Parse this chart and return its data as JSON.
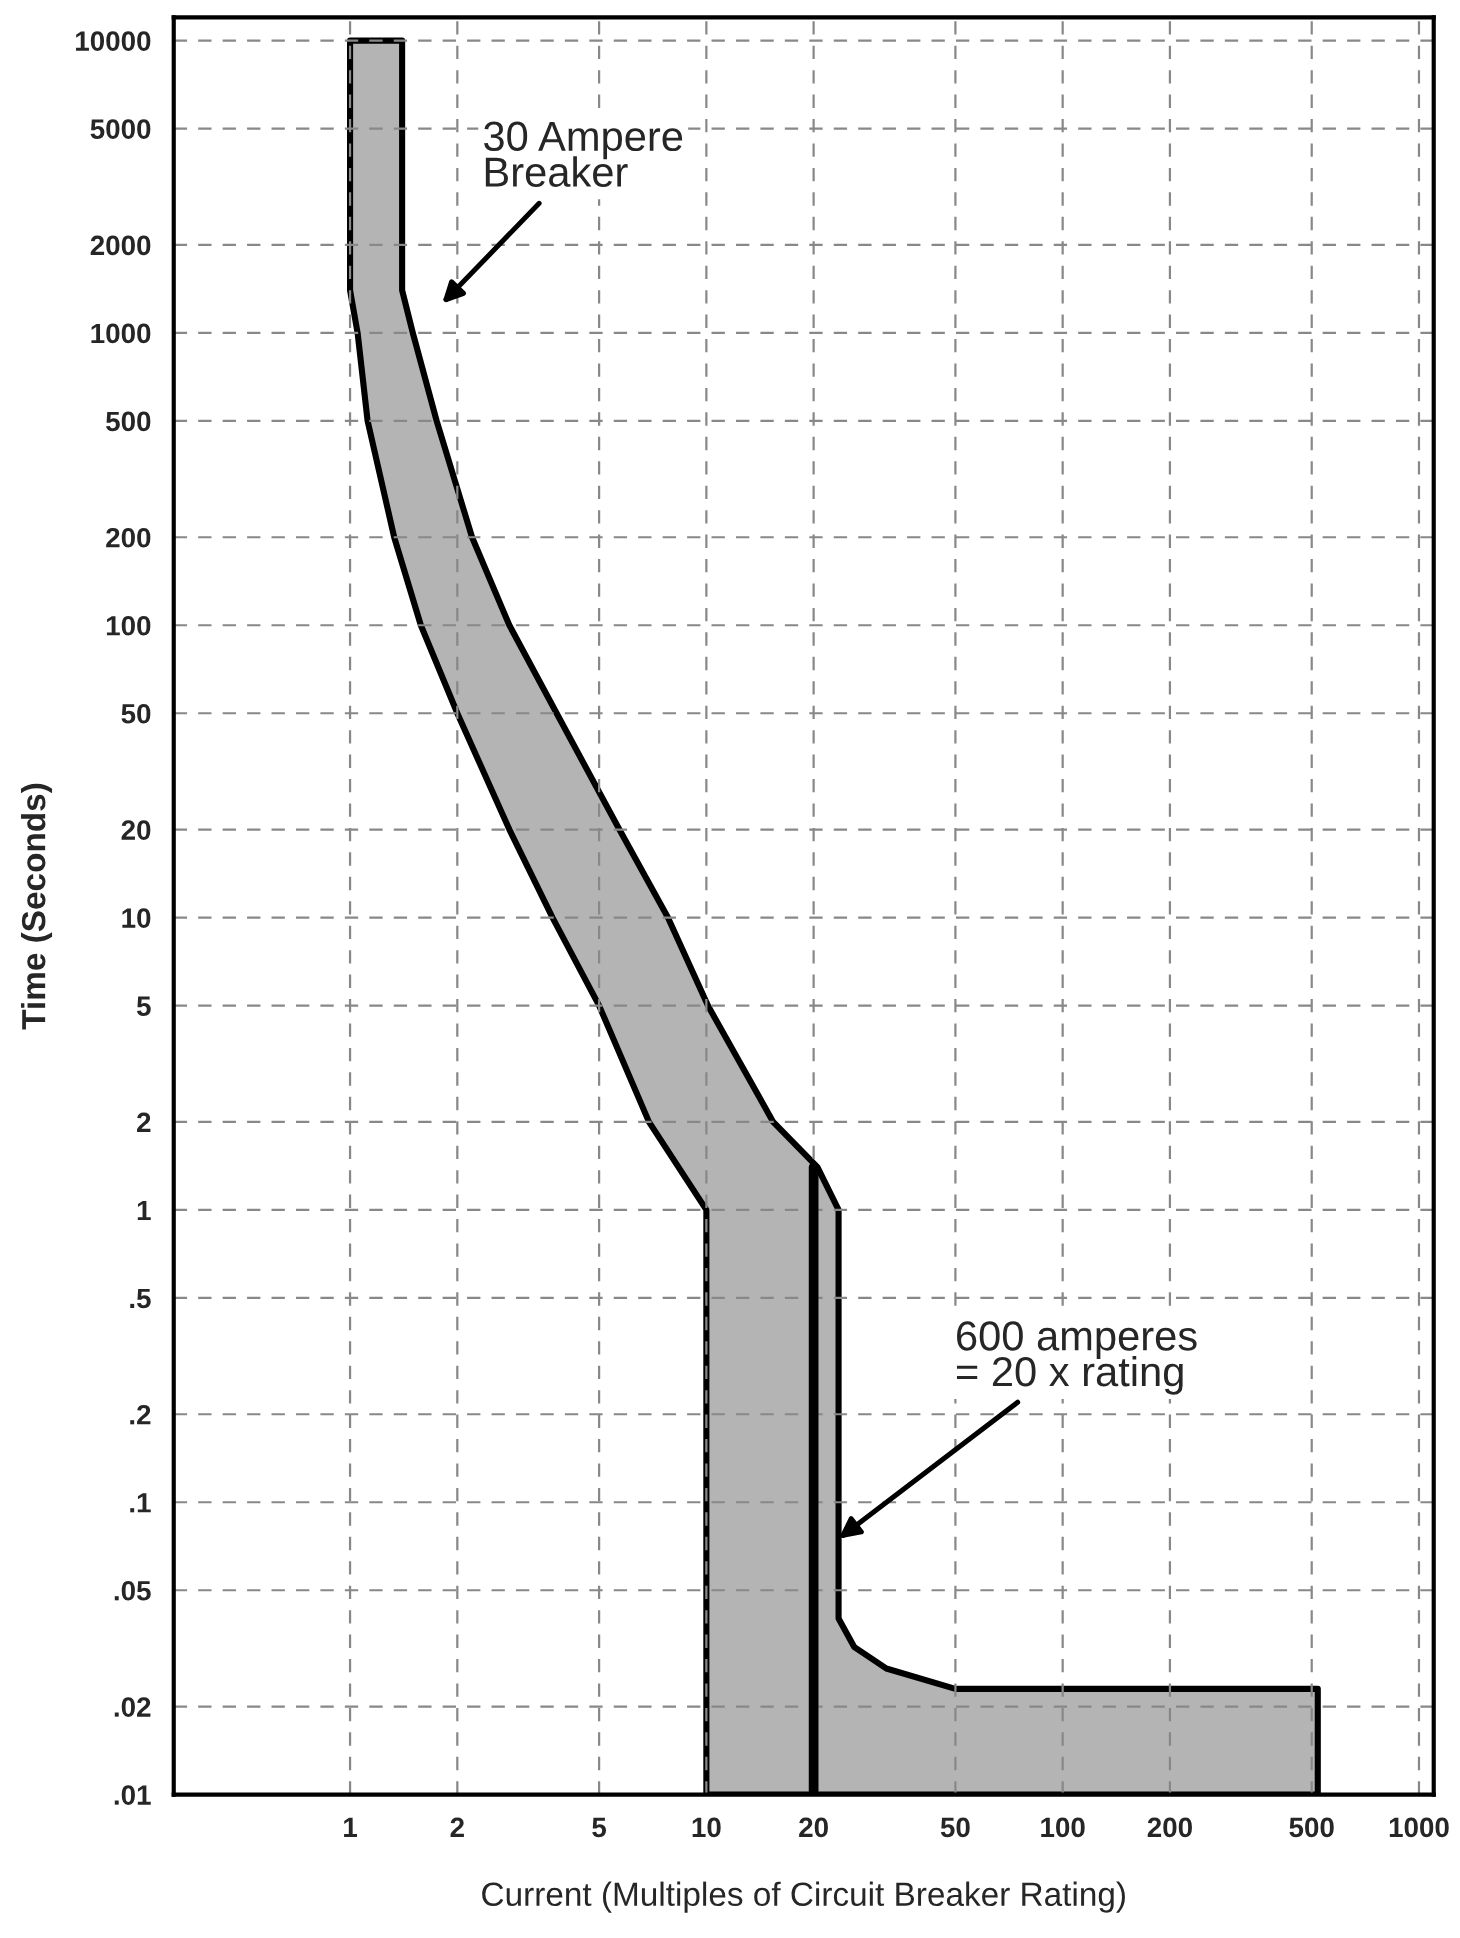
{
  "chart_data": {
    "type": "area",
    "xlabel": "Current (Multiples of Circuit Breaker Rating)",
    "ylabel": "Time (Seconds)",
    "log": "xy",
    "xlim": [
      0.32,
      1100
    ],
    "ylim": [
      0.01,
      12000
    ],
    "xticks": [
      1,
      2,
      5,
      10,
      20,
      50,
      100,
      200,
      500,
      1000
    ],
    "yticks": [
      {
        "value": 0.01,
        "label": ".01"
      },
      {
        "value": 0.02,
        "label": ".02"
      },
      {
        "value": 0.05,
        "label": ".05"
      },
      {
        "value": 0.1,
        "label": ".1"
      },
      {
        "value": 0.2,
        "label": ".2"
      },
      {
        "value": 0.5,
        "label": ".5"
      },
      1,
      2,
      5,
      10,
      20,
      50,
      100,
      200,
      500,
      1000,
      2000,
      5000,
      10000
    ],
    "grid": true,
    "series": [
      {
        "color": "#b4b4b4",
        "x": [
          1.0,
          1.0,
          1.05,
          1.12,
          1.33,
          1.58,
          2.0,
          2.8,
          3.7,
          5.0,
          6.9,
          10,
          10,
          520,
          520,
          50,
          32,
          26,
          23.5,
          23.5,
          20.5,
          15.4,
          10.1,
          7.8,
          5.7,
          3.8,
          2.8,
          2.2,
          1.75,
          1.5,
          1.4,
          1.4
        ],
        "values": [
          10000,
          1400,
          1000,
          500,
          200,
          100,
          50,
          20,
          10,
          5,
          2,
          1,
          0.01,
          0.01,
          0.023,
          0.023,
          0.027,
          0.032,
          0.04,
          1.0,
          1.4,
          2,
          5,
          10,
          20,
          50,
          100,
          200,
          500,
          1000,
          1400,
          10000
        ]
      },
      {
        "type": "line",
        "color": "#000000",
        "x": [
          20,
          20
        ],
        "values": [
          0.01,
          1.4
        ]
      }
    ],
    "annotations": [
      "30 Ampere\nBreaker",
      {
        "text": "600 amperes\n= 20 x rating",
        "x": 23.5,
        "y": 0.075
      }
    ]
  }
}
